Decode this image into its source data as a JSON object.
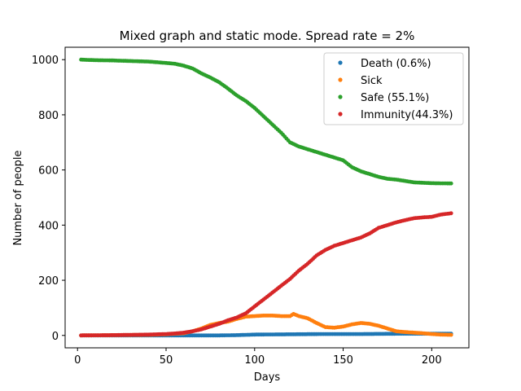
{
  "chart_data": {
    "type": "scatter",
    "title": "Mixed graph and static mode. Spread rate = 2%",
    "xlabel": "Days",
    "ylabel": "Number of people",
    "xlim": [
      -7,
      221
    ],
    "ylim": [
      -45,
      1045
    ],
    "xticks": [
      0,
      50,
      100,
      150,
      200
    ],
    "yticks": [
      0,
      200,
      400,
      600,
      800,
      1000
    ],
    "legend_position": "top-right",
    "series": [
      {
        "name": "Death (0.6%)",
        "color": "#1f77b4",
        "x": [
          2,
          20,
          40,
          60,
          80,
          90,
          100,
          120,
          140,
          160,
          180,
          200,
          211
        ],
        "y": [
          0,
          0,
          0,
          0,
          0,
          1,
          3,
          4,
          5,
          5,
          6,
          6,
          6
        ]
      },
      {
        "name": "Sick",
        "color": "#ff7f0e",
        "x": [
          2,
          20,
          40,
          50,
          60,
          65,
          70,
          75,
          80,
          85,
          90,
          95,
          100,
          105,
          110,
          115,
          120,
          122,
          125,
          130,
          135,
          140,
          145,
          150,
          155,
          160,
          165,
          170,
          175,
          180,
          185,
          190,
          195,
          200,
          205,
          211
        ],
        "y": [
          0,
          1,
          2,
          4,
          8,
          15,
          25,
          38,
          45,
          50,
          60,
          68,
          70,
          72,
          72,
          70,
          70,
          78,
          70,
          62,
          45,
          30,
          28,
          32,
          40,
          45,
          42,
          35,
          25,
          15,
          12,
          10,
          8,
          5,
          3,
          2
        ]
      },
      {
        "name": "Safe (55.1%)",
        "color": "#2ca02c",
        "x": [
          2,
          10,
          20,
          30,
          40,
          50,
          55,
          60,
          65,
          70,
          75,
          80,
          85,
          90,
          95,
          100,
          105,
          110,
          115,
          120,
          125,
          130,
          135,
          140,
          145,
          150,
          155,
          160,
          165,
          170,
          175,
          180,
          185,
          190,
          200,
          211
        ],
        "y": [
          1000,
          998,
          997,
          995,
          993,
          988,
          985,
          978,
          968,
          950,
          935,
          918,
          895,
          870,
          850,
          825,
          795,
          765,
          735,
          700,
          685,
          675,
          665,
          655,
          645,
          635,
          610,
          595,
          585,
          575,
          568,
          565,
          560,
          555,
          552,
          551
        ]
      },
      {
        "name": "Immunity(44.3%)",
        "color": "#d62728",
        "x": [
          2,
          20,
          40,
          50,
          55,
          60,
          65,
          70,
          75,
          80,
          85,
          90,
          95,
          100,
          105,
          110,
          115,
          120,
          125,
          130,
          135,
          140,
          145,
          150,
          155,
          160,
          165,
          170,
          175,
          180,
          185,
          190,
          195,
          200,
          205,
          211
        ],
        "y": [
          0,
          1,
          3,
          5,
          7,
          10,
          15,
          22,
          32,
          42,
          55,
          65,
          80,
          105,
          130,
          155,
          180,
          205,
          235,
          260,
          290,
          310,
          325,
          335,
          345,
          355,
          370,
          390,
          400,
          410,
          418,
          425,
          428,
          430,
          438,
          443
        ]
      }
    ]
  }
}
